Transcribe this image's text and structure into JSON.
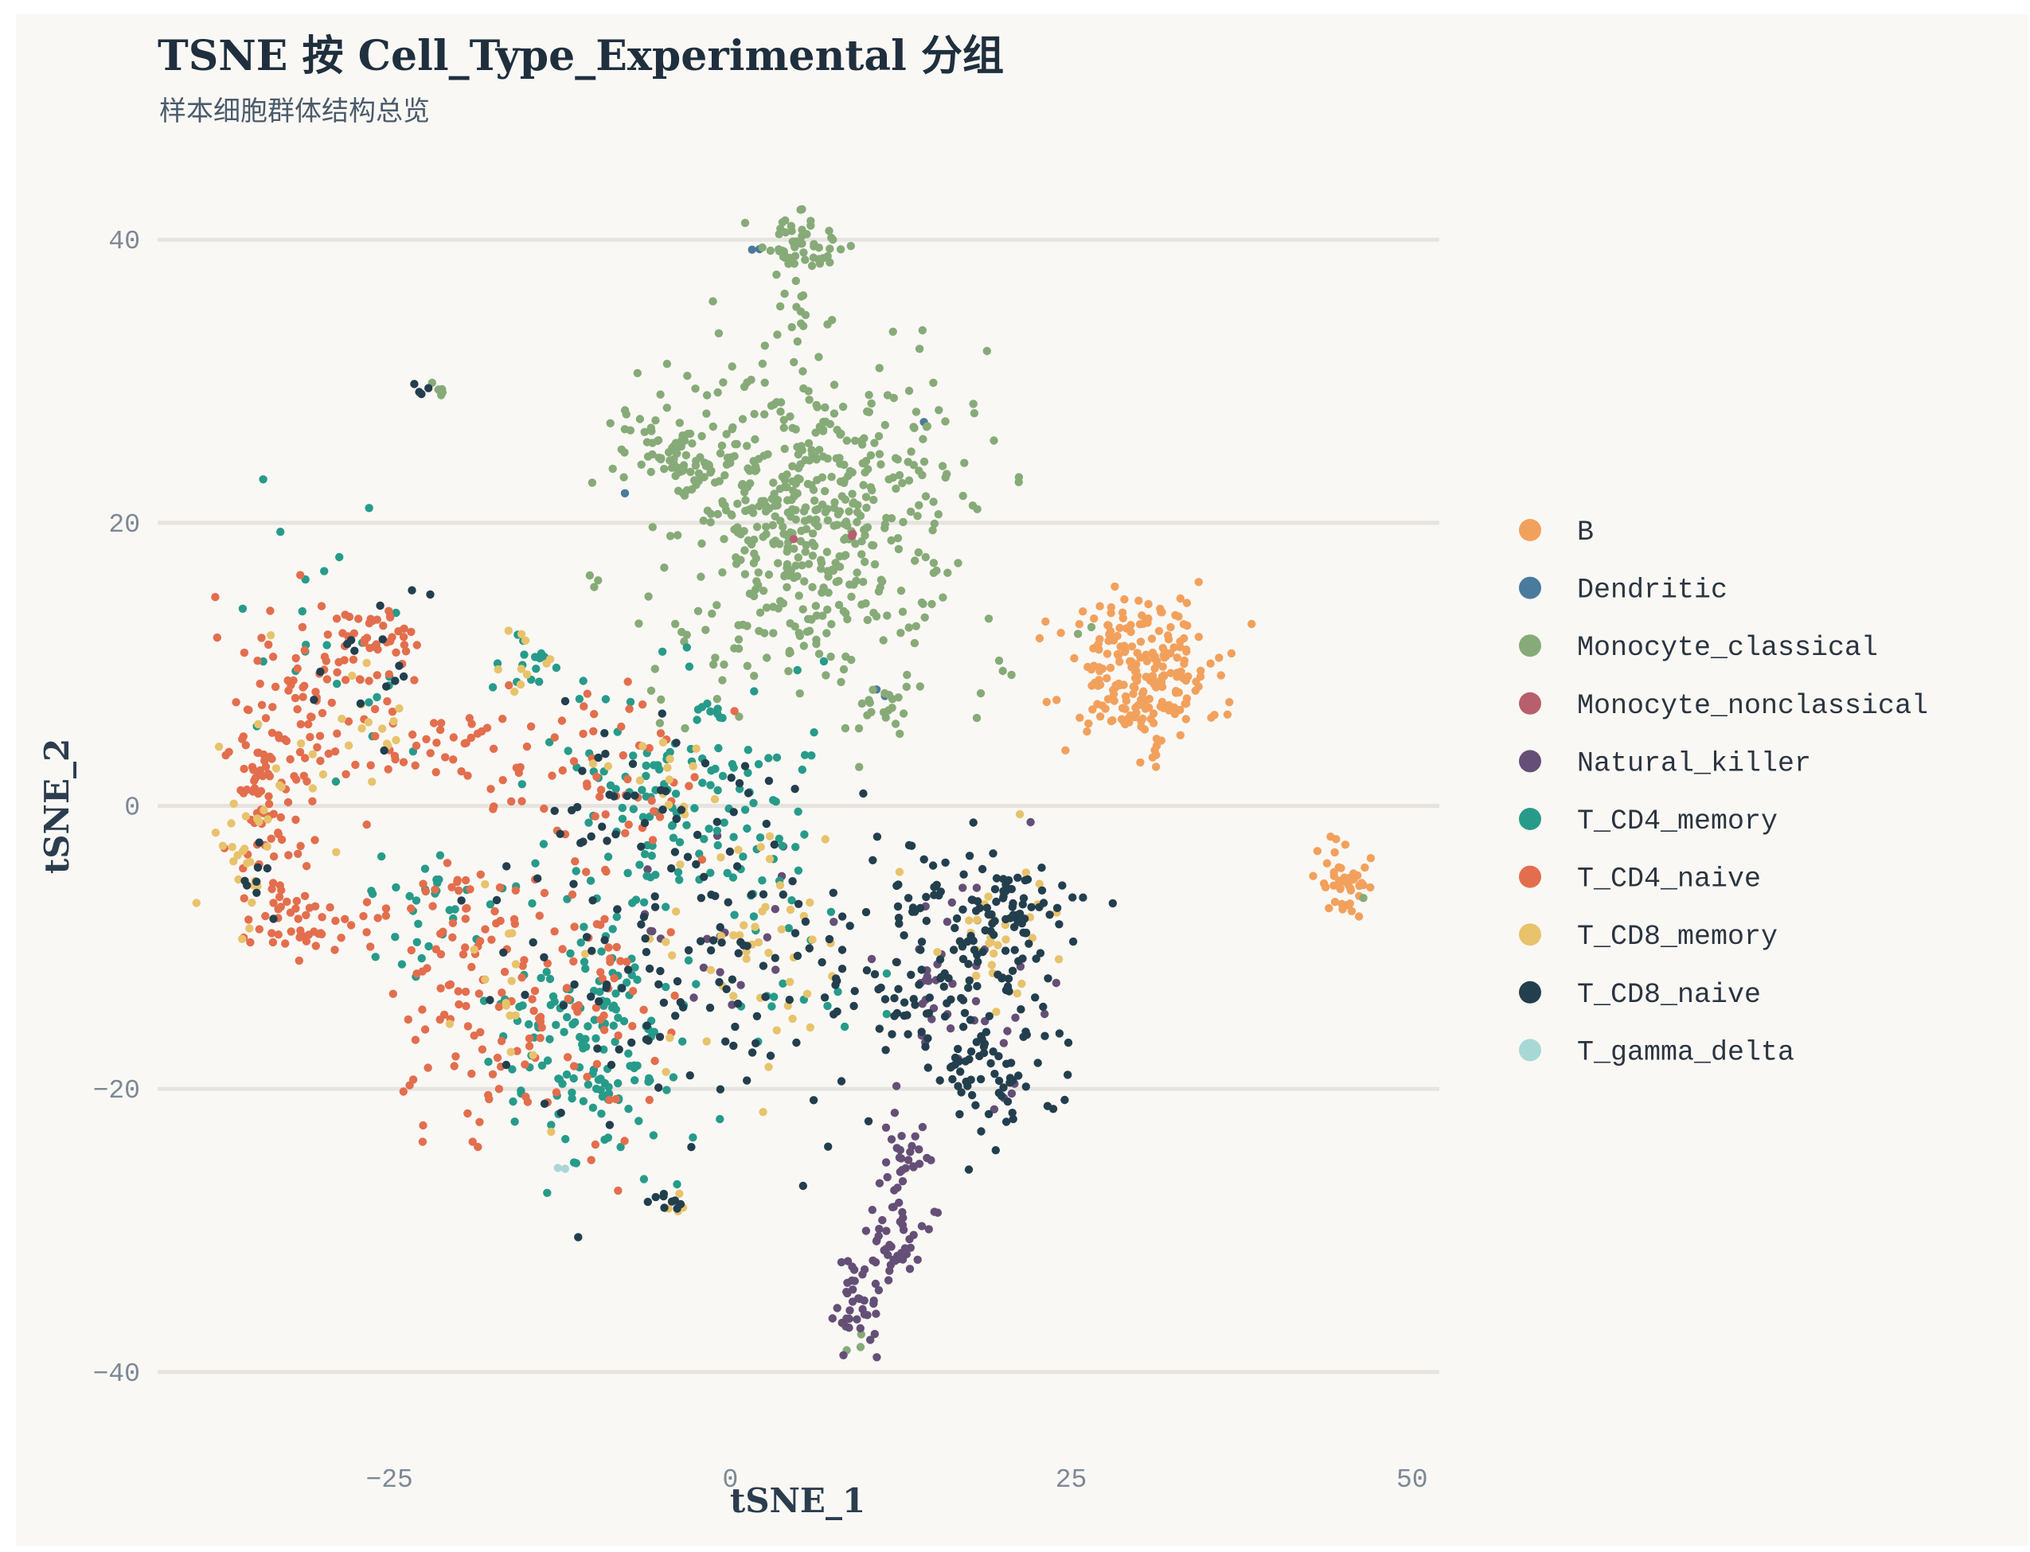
{
  "title": "TSNE 按 Cell_Type_Experimental 分组",
  "subtitle": "样本细胞群体结构总览",
  "chart_data": {
    "type": "scatter",
    "title": "TSNE 按 Cell_Type_Experimental 分组",
    "subtitle": "样本细胞群体结构总览",
    "xlabel": "tSNE_1",
    "ylabel": "tSNE_2",
    "xlim": [
      -42,
      52
    ],
    "ylim": [
      -44,
      44
    ],
    "x_ticks": [
      -25,
      0,
      25,
      50
    ],
    "y_ticks": [
      -40,
      -20,
      0,
      20,
      40
    ],
    "x_tick_labels": [
      "−25",
      "0",
      "25",
      "50"
    ],
    "y_tick_labels": [
      "−40",
      "−20",
      "0",
      "20",
      "40"
    ],
    "grid": "horizontal",
    "legend_position": "right",
    "background": "#faf8f5",
    "series": [
      {
        "name": "B",
        "color": "#f2a15d",
        "clusters": [
          {
            "cx": 30,
            "cy": 9.5,
            "sx": 2.8,
            "sy": 2.6,
            "n": 230
          },
          {
            "cx": 45,
            "cy": -5.5,
            "sx": 0.9,
            "sy": 1.2,
            "n": 45
          }
        ]
      },
      {
        "name": "Dendritic",
        "color": "#4a7a9c",
        "clusters": [
          {
            "cx": 2,
            "cy": 39.2,
            "sx": 0.3,
            "sy": 0.3,
            "n": 2
          },
          {
            "cx": 14.8,
            "cy": 27,
            "sx": 0.3,
            "sy": 0.3,
            "n": 1
          },
          {
            "cx": -7.8,
            "cy": 22.3,
            "sx": 0.2,
            "sy": 0.2,
            "n": 1
          },
          {
            "cx": 11,
            "cy": 8,
            "sx": 0.3,
            "sy": 0.3,
            "n": 2
          }
        ]
      },
      {
        "name": "Monocyte_classical",
        "color": "#87ab78",
        "clusters": [
          {
            "cx": 5,
            "cy": 39.5,
            "sx": 1.5,
            "sy": 1.0,
            "n": 55
          },
          {
            "cx": 5,
            "cy": 35,
            "sx": 0.6,
            "sy": 1.5,
            "n": 10
          },
          {
            "cx": 6,
            "cy": 20,
            "sx": 5.2,
            "sy": 6.0,
            "n": 520
          },
          {
            "cx": -4,
            "cy": 25,
            "sx": 2.8,
            "sy": 2.0,
            "n": 90
          },
          {
            "cx": 11.5,
            "cy": 7,
            "sx": 1.0,
            "sy": 0.8,
            "n": 15
          },
          {
            "cx": -22,
            "cy": 29.5,
            "sx": 0.7,
            "sy": 0.4,
            "n": 6
          },
          {
            "cx": 20,
            "cy": 9.8,
            "sx": 0.2,
            "sy": 0.4,
            "n": 3
          },
          {
            "cx": -10,
            "cy": 16,
            "sx": 0.3,
            "sy": 0.3,
            "n": 3
          },
          {
            "cx": 9.5,
            "cy": -37.5,
            "sx": 0.4,
            "sy": 0.6,
            "n": 3
          },
          {
            "cx": 46.5,
            "cy": -6.5,
            "sx": 0.3,
            "sy": 0.3,
            "n": 1
          },
          {
            "cx": 26,
            "cy": 12.5,
            "sx": 0.5,
            "sy": 0.5,
            "n": 2
          }
        ]
      },
      {
        "name": "Monocyte_nonclassical",
        "color": "#b85f6d",
        "clusters": [
          {
            "cx": 9,
            "cy": 19,
            "sx": 0.4,
            "sy": 0.4,
            "n": 2
          },
          {
            "cx": 4.5,
            "cy": 18,
            "sx": 0.3,
            "sy": 0.3,
            "n": 1
          }
        ]
      },
      {
        "name": "Natural_killer",
        "color": "#654f77",
        "clusters": [
          {
            "cx": 13,
            "cy": -26.5,
            "sx": 1.0,
            "sy": 2.5,
            "n": 40
          },
          {
            "cx": 12,
            "cy": -31,
            "sx": 1.2,
            "sy": 1.0,
            "n": 30
          },
          {
            "cx": 9.5,
            "cy": -35.5,
            "sx": 1.0,
            "sy": 1.6,
            "n": 40
          },
          {
            "cx": 17,
            "cy": -13,
            "sx": 3.0,
            "sy": 4.5,
            "n": 45
          },
          {
            "cx": 0,
            "cy": -10,
            "sx": 4.0,
            "sy": 5.0,
            "n": 20
          }
        ]
      },
      {
        "name": "T_CD4_memory",
        "color": "#279b8a",
        "clusters": [
          {
            "cx": -10,
            "cy": -16,
            "sx": 3.5,
            "sy": 5.0,
            "n": 160
          },
          {
            "cx": -3,
            "cy": 0,
            "sx": 5.0,
            "sy": 4.5,
            "n": 140
          },
          {
            "cx": -22,
            "cy": -8,
            "sx": 2.5,
            "sy": 3.0,
            "n": 30
          },
          {
            "cx": -15,
            "cy": 10,
            "sx": 1.2,
            "sy": 1.2,
            "n": 15
          },
          {
            "cx": -28,
            "cy": 10,
            "sx": 4.0,
            "sy": 4.0,
            "n": 25
          },
          {
            "cx": 6,
            "cy": -10,
            "sx": 4.0,
            "sy": 3.0,
            "n": 20
          }
        ]
      },
      {
        "name": "T_CD4_naive",
        "color": "#e36e4d",
        "clusters": [
          {
            "cx": -34,
            "cy": 0,
            "sx": 1.5,
            "sy": 4.5,
            "n": 90
          },
          {
            "cx": -31,
            "cy": 8,
            "sx": 2.5,
            "sy": 3.0,
            "n": 60
          },
          {
            "cx": -26,
            "cy": 12,
            "sx": 2.0,
            "sy": 1.8,
            "n": 40
          },
          {
            "cx": -31,
            "cy": -8.5,
            "sx": 2.5,
            "sy": 1.0,
            "n": 40
          },
          {
            "cx": -19,
            "cy": -12,
            "sx": 3.5,
            "sy": 6.0,
            "n": 110
          },
          {
            "cx": -10,
            "cy": 2,
            "sx": 5.0,
            "sy": 3.5,
            "n": 60
          },
          {
            "cx": -21,
            "cy": 4.5,
            "sx": 3.0,
            "sy": 1.5,
            "n": 30
          },
          {
            "cx": -10,
            "cy": -14,
            "sx": 3.5,
            "sy": 5.0,
            "n": 60
          }
        ]
      },
      {
        "name": "T_CD8_memory",
        "color": "#e8c36c",
        "clusters": [
          {
            "cx": -35,
            "cy": -3,
            "sx": 1.2,
            "sy": 4.0,
            "n": 30
          },
          {
            "cx": -28,
            "cy": 6,
            "sx": 3.0,
            "sy": 3.0,
            "n": 20
          },
          {
            "cx": -15,
            "cy": 10,
            "sx": 1.2,
            "sy": 1.0,
            "n": 10
          },
          {
            "cx": 3,
            "cy": -12,
            "sx": 4.5,
            "sy": 5.0,
            "n": 50
          },
          {
            "cx": 20,
            "cy": -9,
            "sx": 1.8,
            "sy": 2.5,
            "n": 30
          },
          {
            "cx": -5,
            "cy": 2,
            "sx": 3.0,
            "sy": 2.0,
            "n": 15
          },
          {
            "cx": -4,
            "cy": -28,
            "sx": 0.5,
            "sy": 0.4,
            "n": 4
          },
          {
            "cx": -17,
            "cy": -15,
            "sx": 2.0,
            "sy": 4.0,
            "n": 15
          }
        ]
      },
      {
        "name": "T_CD8_naive",
        "color": "#233f4e",
        "clusters": [
          {
            "cx": 17,
            "cy": -12,
            "sx": 4.0,
            "sy": 4.5,
            "n": 160
          },
          {
            "cx": 20.5,
            "cy": -7,
            "sx": 1.5,
            "sy": 1.5,
            "n": 40
          },
          {
            "cx": 19,
            "cy": -19,
            "sx": 2.0,
            "sy": 1.8,
            "n": 40
          },
          {
            "cx": 3,
            "cy": -10,
            "sx": 4.5,
            "sy": 6.0,
            "n": 70
          },
          {
            "cx": -8,
            "cy": -12,
            "sx": 5.0,
            "sy": 6.0,
            "n": 60
          },
          {
            "cx": -26,
            "cy": 10,
            "sx": 3.5,
            "sy": 3.0,
            "n": 15
          },
          {
            "cx": -22.5,
            "cy": 29.5,
            "sx": 0.5,
            "sy": 0.3,
            "n": 4
          },
          {
            "cx": -4,
            "cy": -28,
            "sx": 0.6,
            "sy": 0.7,
            "n": 8
          },
          {
            "cx": -35,
            "cy": -5,
            "sx": 0.8,
            "sy": 2.0,
            "n": 8
          },
          {
            "cx": -6,
            "cy": 1,
            "sx": 4.0,
            "sy": 2.5,
            "n": 30
          }
        ]
      },
      {
        "name": "T_gamma_delta",
        "color": "#a8d8d6",
        "clusters": [
          {
            "cx": -12.5,
            "cy": -25.5,
            "sx": 0.3,
            "sy": 0.3,
            "n": 2
          }
        ]
      }
    ]
  }
}
